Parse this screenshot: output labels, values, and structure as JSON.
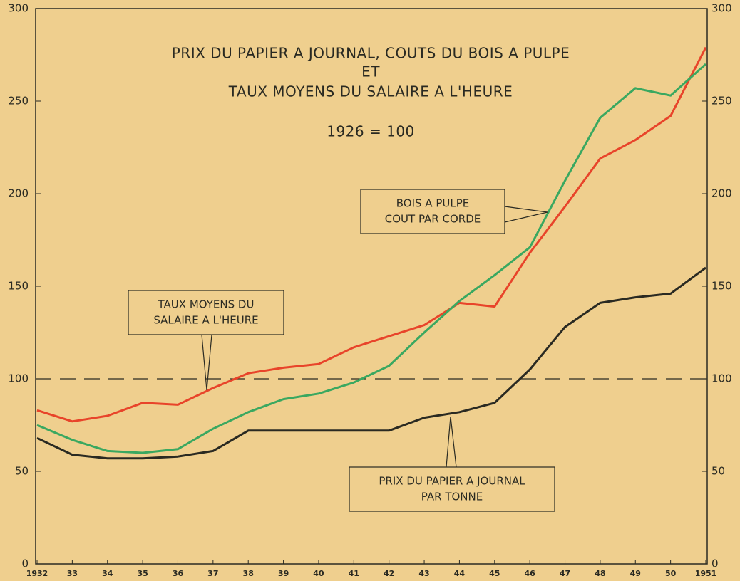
{
  "chart_data": {
    "type": "line",
    "title": [
      "PRIX DU PAPIER A JOURNAL, COUTS DU BOIS A PULPE",
      "ET",
      "TAUX MOYENS DU SALAIRE A L'HEURE"
    ],
    "subtitle": "1926 = 100",
    "categories": [
      "1932",
      "33",
      "34",
      "35",
      "36",
      "37",
      "38",
      "39",
      "40",
      "41",
      "42",
      "43",
      "44",
      "45",
      "46",
      "47",
      "48",
      "49",
      "50",
      "1951"
    ],
    "series": [
      {
        "color": "#e8442a",
        "values": [
          83,
          77,
          80,
          87,
          86,
          95,
          103,
          106,
          108,
          117,
          123,
          129,
          141,
          139,
          168,
          193,
          219,
          229,
          242,
          279
        ]
      },
      {
        "color": "#3aa860",
        "values": [
          75,
          67,
          61,
          60,
          62,
          73,
          82,
          89,
          92,
          98,
          107,
          125,
          142,
          156,
          171,
          207,
          241,
          257,
          253,
          270
        ]
      },
      {
        "color": "#2a2a22",
        "values": [
          68,
          59,
          57,
          57,
          58,
          61,
          72,
          72,
          72,
          72,
          72,
          79,
          82,
          87,
          105,
          128,
          141,
          144,
          146,
          160
        ]
      }
    ],
    "annotations": [
      {
        "series": 0,
        "lines": [
          "TAUX MOYENS DU",
          "SALAIRE A L'HEURE"
        ]
      },
      {
        "series": 1,
        "lines": [
          "BOIS A PULPE",
          "COUT PAR CORDE"
        ]
      },
      {
        "series": 2,
        "lines": [
          "PRIX DU PAPIER A JOURNAL",
          "PAR TONNE"
        ]
      }
    ],
    "reference_line": 100,
    "ylim": [
      0,
      300
    ],
    "yticks": [
      0,
      50,
      100,
      150,
      200,
      250,
      300
    ],
    "y2lim": [
      0,
      300
    ],
    "y2ticks": [
      0,
      50,
      100,
      150,
      200,
      250,
      300
    ]
  }
}
